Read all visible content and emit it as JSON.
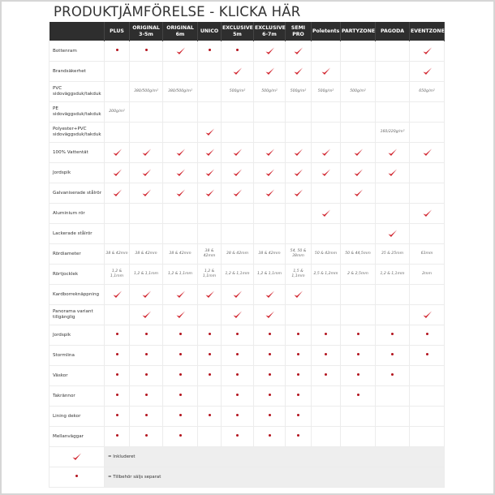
{
  "title": "PRODUKTJÄMFÖRELSE - KLICKA HÄR",
  "colors": {
    "header_bg": "#2e2e2e",
    "check": "#d0202a",
    "dot": "#b3141e",
    "legend_bg": "#eeeeee"
  },
  "icons": {
    "c": "red-checkmark-icon",
    "d": "red-dot-icon"
  },
  "columns": [
    "PLUS",
    "ORIGINAL 3-5m",
    "ORIGINAL 6m",
    "UNICO",
    "EXCLUSIVE 5m",
    "EXCLUSIVE 6-7m",
    "SEMI PRO",
    "Poletents",
    "PARTYZONE",
    "PAGODA",
    "EVENTZONE"
  ],
  "rows": [
    {
      "label": "Bottenram",
      "cells": [
        "d",
        "d",
        "c",
        "d",
        "d",
        "c",
        "c",
        "",
        "",
        "",
        "c"
      ]
    },
    {
      "label": "Brandsäkerhet",
      "cells": [
        "",
        "",
        "",
        "",
        "c",
        "c",
        "c",
        "c",
        "",
        "",
        "c"
      ]
    },
    {
      "label": "PVC sidoväggsduk/takduk",
      "cells": [
        "",
        "380/500g/m²",
        "380/500g/m²",
        "",
        "500g/m²",
        "500g/m²",
        "500g/m²",
        "500g/m²",
        "500g/m²",
        "",
        "650g/m²"
      ]
    },
    {
      "label": "PE sidoväggsduk/takduk",
      "cells": [
        "200g/m²",
        "",
        "",
        "",
        "",
        "",
        "",
        "",
        "",
        "",
        ""
      ]
    },
    {
      "label": "Polyester+PVC sidoväggsduk/takduk",
      "cells": [
        "",
        "",
        "",
        "c",
        "",
        "",
        "",
        "",
        "",
        "160/220g/m²",
        ""
      ]
    },
    {
      "label": "100% Vattentät",
      "cells": [
        "c",
        "c",
        "c",
        "c",
        "c",
        "c",
        "c",
        "c",
        "c",
        "c",
        "c"
      ]
    },
    {
      "label": "Jordspik",
      "cells": [
        "c",
        "c",
        "c",
        "c",
        "c",
        "c",
        "c",
        "c",
        "c",
        "c",
        ""
      ]
    },
    {
      "label": "Galvaniserade stålrör",
      "cells": [
        "c",
        "c",
        "c",
        "c",
        "c",
        "c",
        "c",
        "",
        "c",
        "",
        ""
      ]
    },
    {
      "label": "Aluminium rör",
      "cells": [
        "",
        "",
        "",
        "",
        "",
        "",
        "",
        "c",
        "",
        "",
        "c"
      ]
    },
    {
      "label": "Lackerade stålrör",
      "cells": [
        "",
        "",
        "",
        "",
        "",
        "",
        "",
        "",
        "",
        "c",
        ""
      ]
    },
    {
      "label": "Rördiameter",
      "cells": [
        "38 & 42mm",
        "38 & 42mm",
        "38 & 42mm",
        "38 & 42mm",
        "38 & 42mm",
        "38 & 42mm",
        "54, 50 & 38mm",
        "50 & 42mm",
        "50 & 44,5mm",
        "35 & 25mm",
        "63mm"
      ]
    },
    {
      "label": "Rörtjocklek",
      "cells": [
        "1,2 & 1,1mm",
        "1,2 & 1,1mm",
        "1,2 & 1,1mm",
        "1,2 & 1,1mm",
        "1,2 & 1,1mm",
        "1,2 & 1,1mm",
        "1,5 & 1,1mm",
        "2,5 & 1,2mm",
        "2 & 2,5mm",
        "1,2 & 1,1mm",
        "2mm"
      ]
    },
    {
      "label": "Kardborreknäppning",
      "cells": [
        "c",
        "c",
        "c",
        "c",
        "c",
        "c",
        "c",
        "",
        "",
        "",
        ""
      ]
    },
    {
      "label": "Panorama variant tillgänglig",
      "cells": [
        "",
        "c",
        "c",
        "",
        "c",
        "c",
        "",
        "",
        "",
        "",
        "c"
      ]
    },
    {
      "label": "Jordspik",
      "cells": [
        "d",
        "d",
        "d",
        "d",
        "d",
        "d",
        "d",
        "d",
        "d",
        "d",
        "d"
      ]
    },
    {
      "label": "Stormlina",
      "cells": [
        "d",
        "d",
        "d",
        "d",
        "d",
        "d",
        "d",
        "d",
        "d",
        "d",
        "d"
      ]
    },
    {
      "label": "Väskor",
      "cells": [
        "d",
        "d",
        "d",
        "d",
        "d",
        "d",
        "d",
        "d",
        "d",
        "d",
        ""
      ]
    },
    {
      "label": "Takrännor",
      "cells": [
        "d",
        "d",
        "d",
        "",
        "d",
        "d",
        "d",
        "",
        "d",
        "",
        ""
      ]
    },
    {
      "label": "Lining dekor",
      "cells": [
        "d",
        "d",
        "d",
        "d",
        "d",
        "d",
        "d",
        "",
        "",
        "",
        ""
      ]
    },
    {
      "label": "Mellanväggar",
      "cells": [
        "d",
        "d",
        "d",
        "",
        "d",
        "d",
        "d",
        "",
        "",
        "",
        ""
      ]
    }
  ],
  "legend": [
    {
      "symbol": "c",
      "text": "= Inkluderet"
    },
    {
      "symbol": "d",
      "text": "= Tillbehör säljs separat"
    }
  ]
}
